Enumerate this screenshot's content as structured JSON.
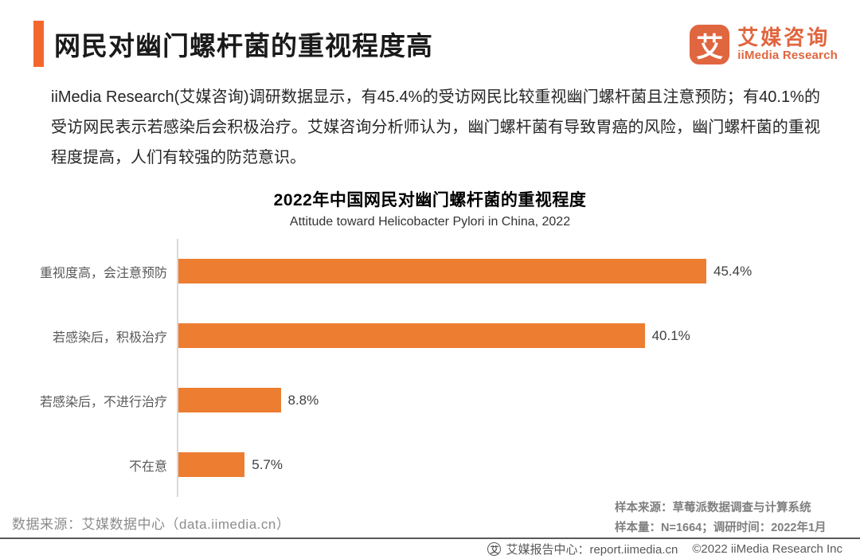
{
  "header": {
    "title": "网民对幽门螺杆菌的重视程度高",
    "logo": {
      "glyph": "艾",
      "name_cn": "艾媒咨询",
      "name_en": "iiMedia Research"
    }
  },
  "intro": {
    "text": "iiMedia Research(艾媒咨询)调研数据显示，有45.4%的受访网民比较重视幽门螺杆菌且注意预防；有40.1%的受访网民表示若感染后会积极治疗。艾媒咨询分析师认为，幽门螺杆菌有导致胃癌的风险，幽门螺杆菌的重视程度提高，人们有较强的防范意识。"
  },
  "chart_data": {
    "type": "bar",
    "orientation": "horizontal",
    "title": "2022年中国网民对幽门螺杆菌的重视程度",
    "subtitle": "Attitude toward Helicobacter Pylori in China, 2022",
    "categories": [
      "重视度高，会注意预防",
      "若感染后，积极治疗",
      "若感染后，不进行治疗",
      "不在意"
    ],
    "values": [
      45.4,
      40.1,
      8.8,
      5.7
    ],
    "value_labels": [
      "45.4%",
      "40.1%",
      "8.8%",
      "5.7%"
    ],
    "bar_color": "#ED7D31",
    "axis_color": "#D9D9D9",
    "xlim": [
      0,
      50
    ],
    "grid": false,
    "legend": false
  },
  "footer": {
    "data_source": "数据来源：艾媒数据中心（data.iimedia.cn）",
    "sample_source": "样本来源：草莓派数据调查与计算系统",
    "sample_info": "样本量：N=1664；调研时间：2022年1月",
    "report_center": "艾媒报告中心：report.iimedia.cn",
    "copyright": "©2022 iiMedia Research Inc",
    "icon_glyph": "艾"
  },
  "colors": {
    "accent": "#F4672C",
    "bar": "#ED7D31",
    "logo": "#E0663F"
  }
}
